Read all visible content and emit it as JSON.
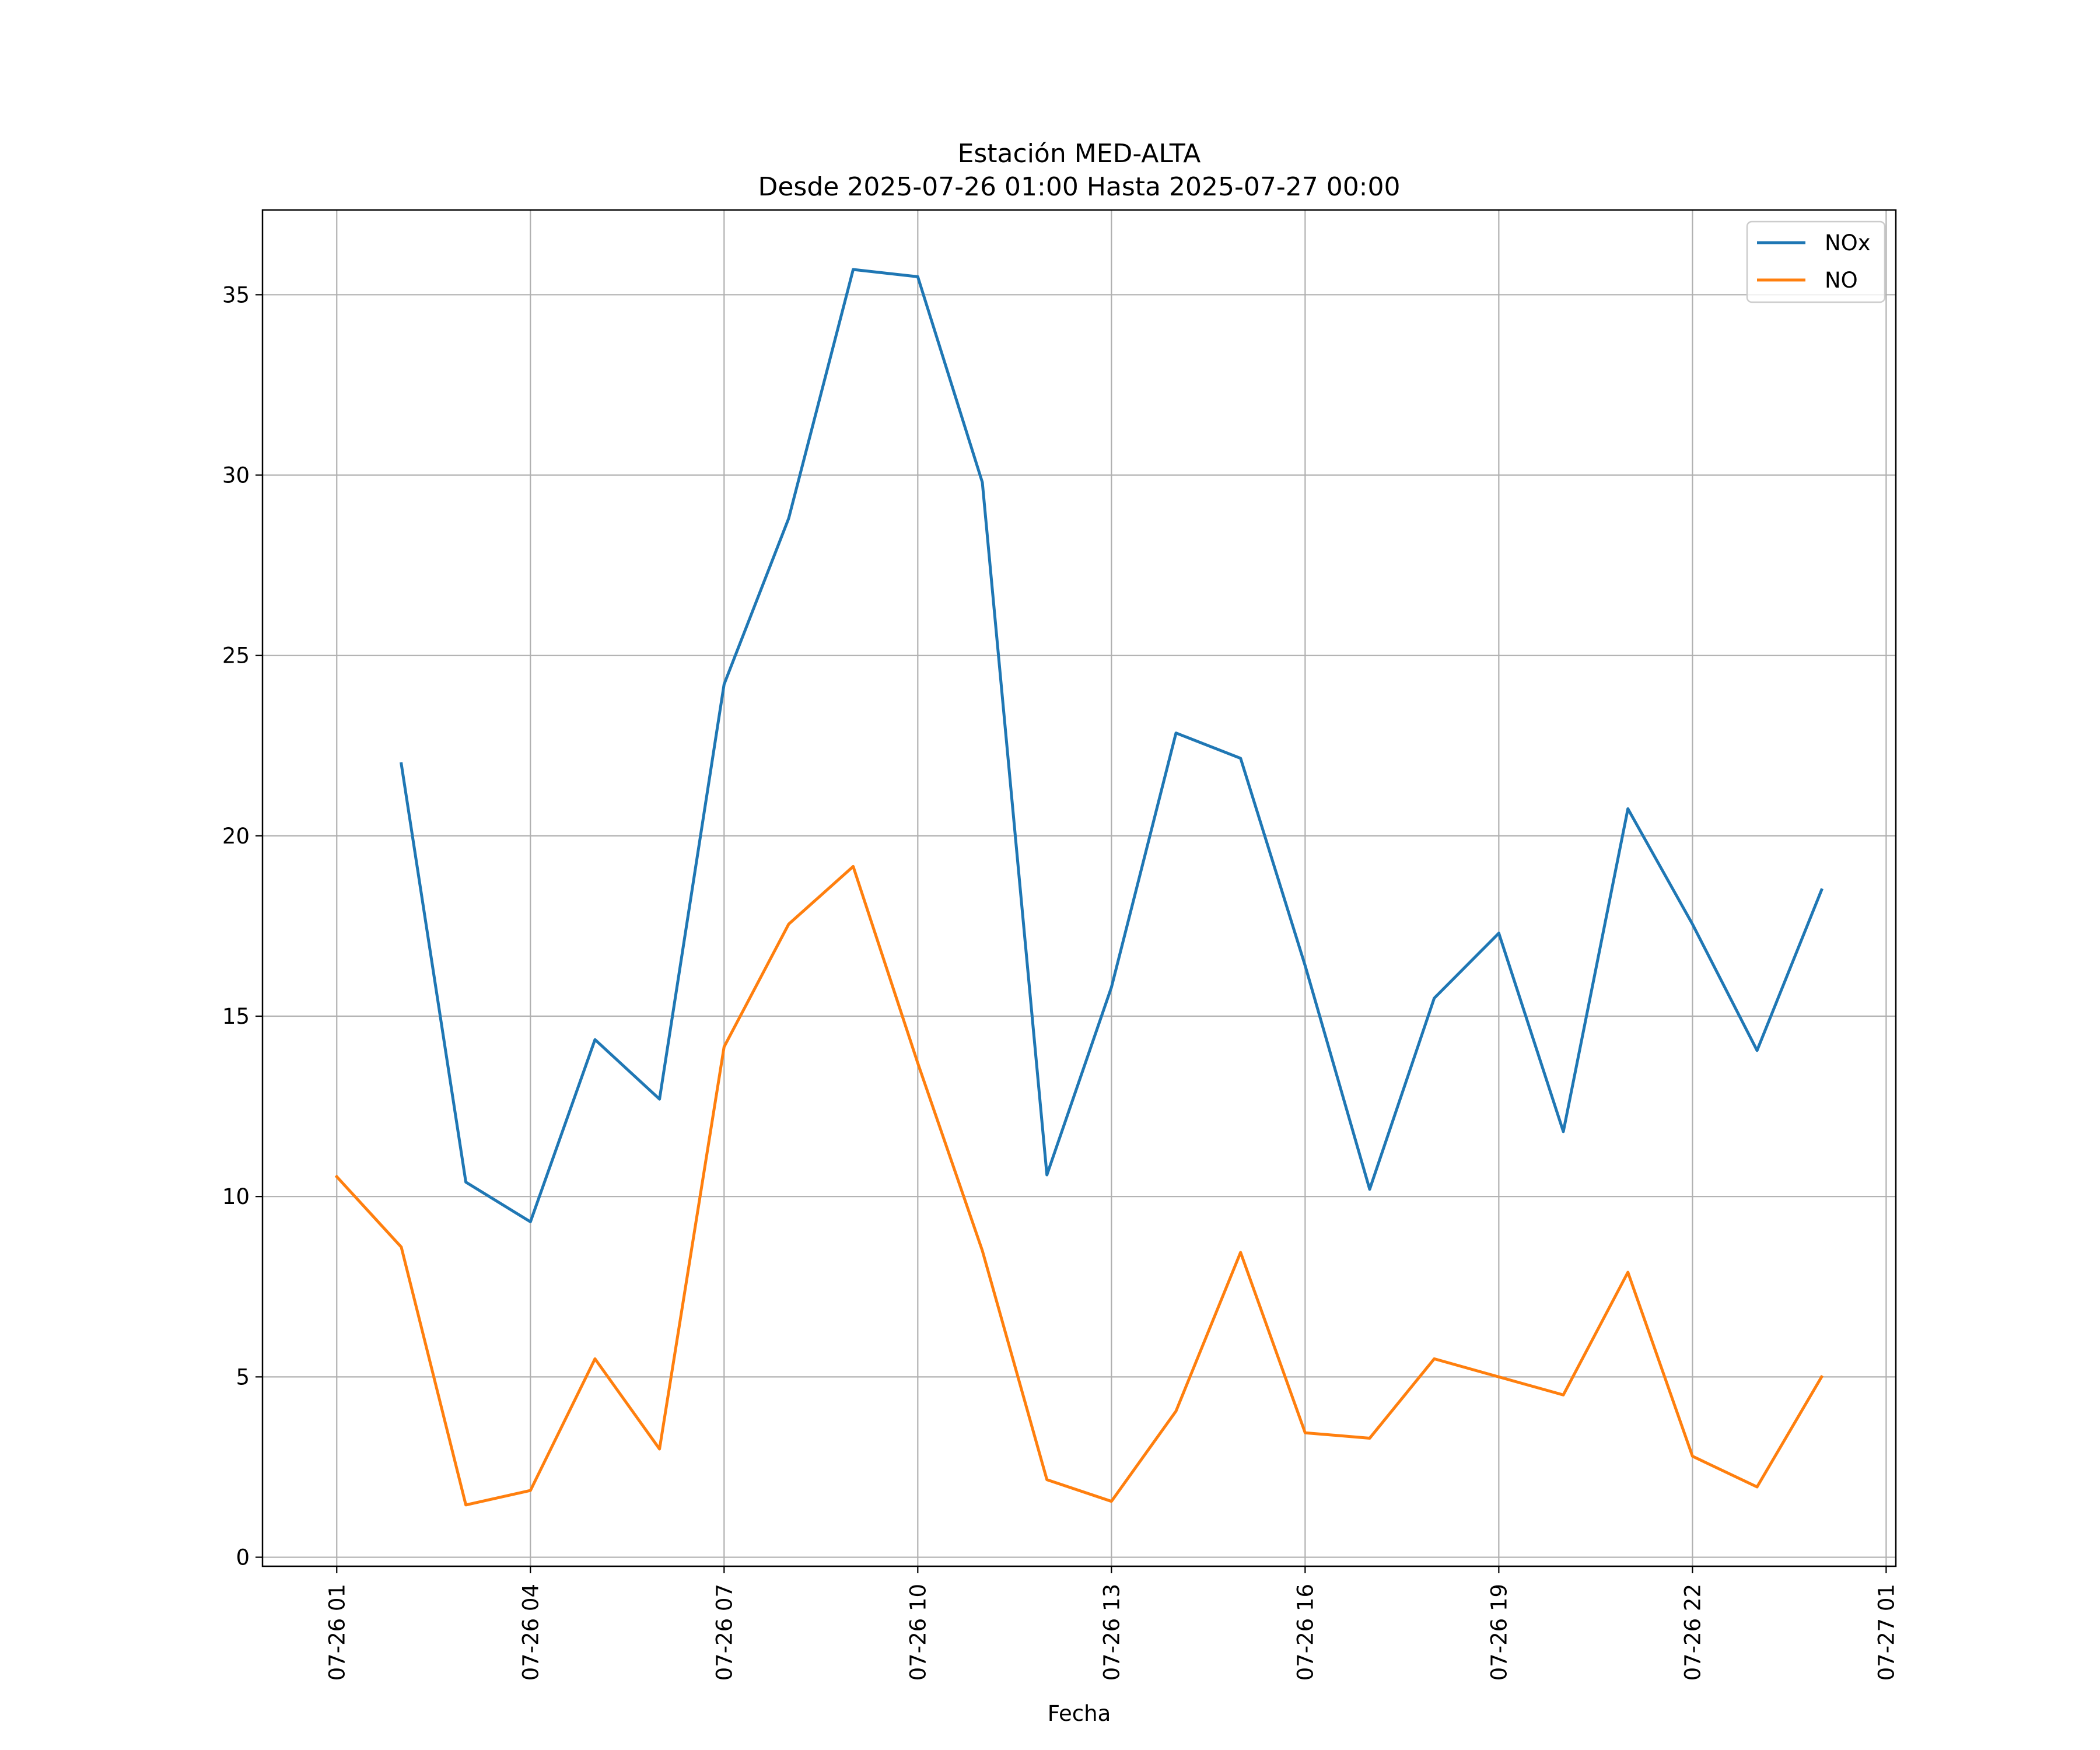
{
  "chart_data": {
    "type": "line",
    "title": "Estación MED-ALTA",
    "subtitle": "Desde 2025-07-26 01:00 Hasta 2025-07-27 00:00",
    "xlabel": "Fecha",
    "ylabel": "",
    "x": [
      "2025-07-26 01:00",
      "2025-07-26 02:00",
      "2025-07-26 03:00",
      "2025-07-26 04:00",
      "2025-07-26 05:00",
      "2025-07-26 06:00",
      "2025-07-26 07:00",
      "2025-07-26 08:00",
      "2025-07-26 09:00",
      "2025-07-26 10:00",
      "2025-07-26 11:00",
      "2025-07-26 12:00",
      "2025-07-26 13:00",
      "2025-07-26 14:00",
      "2025-07-26 15:00",
      "2025-07-26 16:00",
      "2025-07-26 17:00",
      "2025-07-26 18:00",
      "2025-07-26 19:00",
      "2025-07-26 20:00",
      "2025-07-26 21:00",
      "2025-07-26 22:00",
      "2025-07-26 23:00",
      "2025-07-27 00:00"
    ],
    "series": [
      {
        "name": "NOx",
        "color": "#1f77b4",
        "values": [
          null,
          22.0,
          10.4,
          9.3,
          14.35,
          12.7,
          24.2,
          28.8,
          35.7,
          35.5,
          29.8,
          10.6,
          15.8,
          22.85,
          22.15,
          16.4,
          10.2,
          15.5,
          17.3,
          11.8,
          20.75,
          17.55,
          14.05,
          18.5
        ]
      },
      {
        "name": "NO",
        "color": "#ff7f0e",
        "values": [
          10.55,
          8.6,
          1.45,
          1.85,
          5.5,
          3.0,
          14.15,
          17.55,
          19.15,
          13.7,
          8.5,
          2.15,
          1.55,
          4.05,
          8.45,
          3.45,
          3.3,
          5.5,
          5.0,
          4.5,
          7.9,
          2.8,
          1.95,
          5.0
        ]
      }
    ],
    "x_ticks": [
      "07-26 01",
      "07-26 04",
      "07-26 07",
      "07-26 10",
      "07-26 13",
      "07-26 16",
      "07-26 19",
      "07-26 22",
      "07-27 01"
    ],
    "y_ticks": [
      "0",
      "5",
      "10",
      "15",
      "20",
      "25",
      "30",
      "35"
    ],
    "xlim": [
      "2025-07-25 23:51",
      "2025-07-27 01:09"
    ],
    "ylim": [
      -0.25,
      37.35
    ],
    "grid": true,
    "legend_position": "top-right"
  }
}
